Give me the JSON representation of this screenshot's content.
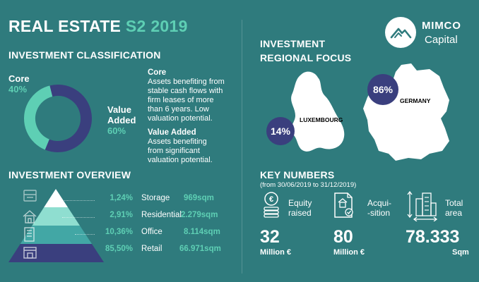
{
  "header": {
    "title": "REAL ESTATE",
    "period": "S2 2019",
    "logo_name": "MIMCO",
    "logo_sub": "Capital"
  },
  "classification": {
    "title": "INVESTMENT CLASSIFICATION",
    "core_label": "Core",
    "core_pct": "40%",
    "value_label_line1": "Value",
    "value_label_line2": "Added",
    "value_pct": "60%",
    "core_share": 40,
    "value_share": 60,
    "core_color": "#5ecfb4",
    "value_color": "#3a3f7e",
    "desc_core_head": "Core",
    "desc_core_lines": [
      "Assets benefiting from",
      "stable cash flows with",
      "firm leases of more",
      "than 6 years. Low",
      "valuation potential."
    ],
    "desc_value_head": "Value Added",
    "desc_value_lines": [
      "Assets benefiting",
      "from significant",
      "valuation potential."
    ]
  },
  "overview": {
    "title": "INVESTMENT OVERVIEW",
    "rows": [
      {
        "pct": "1,24%",
        "category": "Storage",
        "sqm": "969sqm",
        "icon": "storage-icon"
      },
      {
        "pct": "2,91%",
        "category": "Residential",
        "sqm": "2.279sqm",
        "icon": "house-icon"
      },
      {
        "pct": "10,36%",
        "category": "Office",
        "sqm": "8.114sqm",
        "icon": "office-icon"
      },
      {
        "pct": "85,50%",
        "category": "Retail",
        "sqm": "66.971sqm",
        "icon": "shop-icon"
      }
    ]
  },
  "regional": {
    "title_line1": "INVESTMENT",
    "title_line2": "REGIONAL FOCUS",
    "luxembourg_label": "LUXEMBOURG",
    "luxembourg_pct": "14%",
    "germany_label": "GERMANY",
    "germany_pct": "86%"
  },
  "key_numbers": {
    "title": "KEY NUMBERS",
    "subtitle": "(from 30/06/2019 to 31/12/2019)",
    "items": [
      {
        "label_line1": "Equity",
        "label_line2": "raised",
        "value": "32",
        "unit": "Million €",
        "icon": "coins-icon"
      },
      {
        "label_line1": "Acqui-",
        "label_line2": "-sition",
        "value": "80",
        "unit": "Million €",
        "icon": "contract-icon"
      },
      {
        "label_line1": "Total",
        "label_line2": "area",
        "value": "78.333",
        "unit": "Sqm",
        "icon": "building-area-icon"
      }
    ]
  }
}
